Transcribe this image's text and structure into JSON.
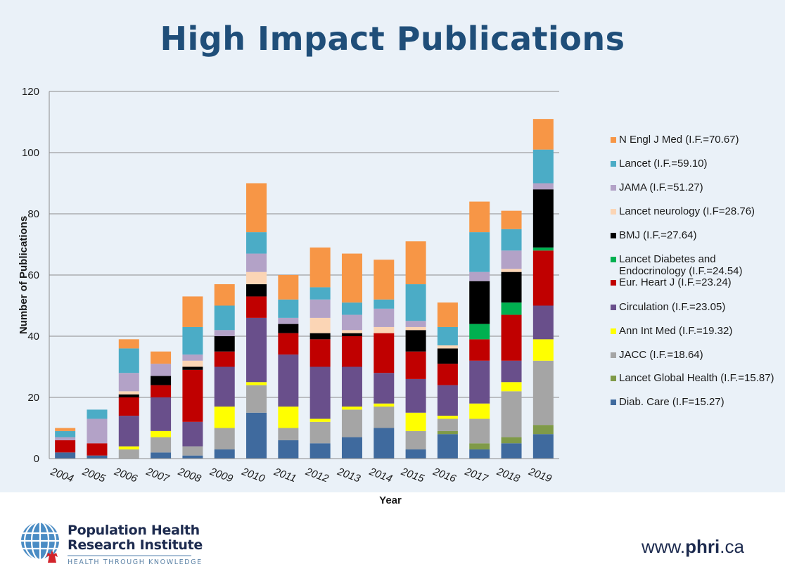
{
  "slide": {
    "title": "High Impact Publications",
    "footer": {
      "org_line1": "Population Health",
      "org_line2": "Research Institute",
      "tagline": "HEALTH THROUGH KNOWLEDGE",
      "url_prefix": "www.",
      "url_bold": "phri",
      "url_suffix": ".ca"
    }
  },
  "chart_data": {
    "type": "bar",
    "stacked": true,
    "title": "High Impact Publications",
    "xlabel": "Year",
    "ylabel": "Number of Publications",
    "ylim": [
      0,
      120
    ],
    "yticks": [
      0,
      20,
      40,
      60,
      80,
      100,
      120
    ],
    "grid": true,
    "legend_position": "right",
    "categories": [
      "2004",
      "2005",
      "2006",
      "2007",
      "2008",
      "2009",
      "2010",
      "2011",
      "2012",
      "2013",
      "2014",
      "2015",
      "2016",
      "2017",
      "2018",
      "2019"
    ],
    "series": [
      {
        "name": "Diab. Care (I.F=15.27)",
        "color": "#3f6a9e",
        "values": [
          2,
          1,
          0,
          2,
          1,
          3,
          15,
          6,
          5,
          7,
          10,
          3,
          8,
          3,
          5,
          8
        ]
      },
      {
        "name": "Lancet Global Health (I.F.=15.87)",
        "color": "#7f9a48",
        "values": [
          0,
          0,
          0,
          0,
          0,
          0,
          0,
          0,
          0,
          0,
          0,
          0,
          1,
          2,
          2,
          3
        ]
      },
      {
        "name": "JACC (I.F.=18.64)",
        "color": "#a5a5a5",
        "values": [
          0,
          0,
          3,
          5,
          3,
          7,
          9,
          4,
          7,
          9,
          7,
          6,
          4,
          8,
          15,
          21
        ]
      },
      {
        "name": "Ann Int Med (I.F.=19.32)",
        "color": "#ffff00",
        "values": [
          0,
          0,
          1,
          2,
          0,
          7,
          1,
          7,
          1,
          1,
          1,
          6,
          1,
          5,
          3,
          7
        ]
      },
      {
        "name": "Circulation (I.F.=23.05)",
        "color": "#694f8b",
        "values": [
          0,
          0,
          10,
          11,
          8,
          13,
          21,
          17,
          17,
          13,
          10,
          11,
          10,
          14,
          7,
          11
        ]
      },
      {
        "name": "Eur. Heart J (I.F.=23.24)",
        "color": "#c00000",
        "values": [
          4,
          4,
          6,
          4,
          17,
          5,
          7,
          7,
          9,
          10,
          13,
          9,
          7,
          7,
          15,
          18
        ]
      },
      {
        "name": "Lancet Diabetes and Endocrinology  (I.F.=24.54)",
        "color": "#00b050",
        "values": [
          0,
          0,
          0,
          0,
          0,
          0,
          0,
          0,
          0,
          0,
          0,
          0,
          0,
          5,
          4,
          1
        ]
      },
      {
        "name": "BMJ (I.F.=27.64)",
        "color": "#000000",
        "values": [
          0,
          0,
          1,
          3,
          1,
          5,
          4,
          3,
          2,
          1,
          0,
          7,
          5,
          14,
          10,
          19
        ]
      },
      {
        "name": "Lancet neurology (I.F=28.76)",
        "color": "#fbd5b5",
        "values": [
          0,
          0,
          1,
          0,
          2,
          0,
          4,
          0,
          5,
          1,
          2,
          1,
          1,
          0,
          1,
          0
        ]
      },
      {
        "name": "JAMA (I.F.=51.27)",
        "color": "#b3a2c7",
        "values": [
          1,
          8,
          6,
          4,
          2,
          2,
          6,
          2,
          6,
          5,
          6,
          2,
          0,
          3,
          6,
          2
        ]
      },
      {
        "name": "Lancet (I.F.=59.10)",
        "color": "#4bacc6",
        "values": [
          2,
          3,
          8,
          0,
          9,
          8,
          7,
          6,
          4,
          4,
          3,
          12,
          6,
          13,
          7,
          11
        ]
      },
      {
        "name": "N Engl J Med (I.F.=70.67)",
        "color": "#f79646",
        "values": [
          1,
          0,
          3,
          4,
          10,
          7,
          16,
          8,
          13,
          16,
          13,
          14,
          8,
          10,
          6,
          10
        ]
      }
    ],
    "totals": [
      10,
      16,
      39,
      35,
      53,
      57,
      90,
      60,
      69,
      67,
      65,
      71,
      51,
      84,
      81,
      111
    ]
  }
}
